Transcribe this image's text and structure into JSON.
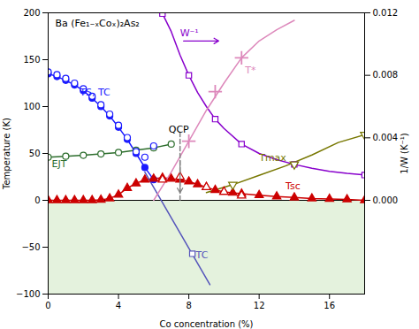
{
  "chart_data": {
    "type": "line",
    "xlabel": "Co concentration (%)",
    "ylabel": "Temperature (K)",
    "y2label": "1/W (K⁻¹)",
    "xlim": [
      0,
      18
    ],
    "xticks": [
      0,
      4,
      8,
      12,
      16
    ],
    "ylim": [
      -100,
      200
    ],
    "yticks": [
      -100,
      -50,
      0,
      50,
      100,
      150,
      200
    ],
    "y2lim": [
      -0.006,
      0.012
    ],
    "y2ticks": [
      {
        "value": 0,
        "label": "0.000"
      },
      0.004,
      0.008,
      0.012
    ],
    "grid": false,
    "series": [
      {
        "type": "area",
        "color": "#d8ecce",
        "x": [
          0,
          18
        ],
        "values": [
          0,
          0
        ]
      },
      {
        "type": "rule",
        "color": "black",
        "values": [
          0
        ]
      },
      {
        "type": "line",
        "color": "#2d6e2d",
        "marker": "circle_open",
        "x": [
          0,
          1,
          2,
          3,
          4,
          5,
          6,
          7
        ],
        "values": [
          46,
          47,
          48,
          49.5,
          51,
          53.5,
          56,
          60
        ]
      },
      {
        "type": "line",
        "color": "#1a1aff",
        "marker": "circle",
        "x": [
          0,
          0.5,
          1,
          1.5,
          2,
          2.5,
          3,
          3.5,
          4,
          4.5,
          5,
          5.5,
          6
        ],
        "values": [
          135,
          132,
          128,
          123,
          117,
          109,
          100,
          90,
          78,
          65,
          50,
          35,
          22
        ]
      },
      {
        "type": "scatter",
        "color": "#1a1aff",
        "marker": "circle_open",
        "x": [
          0,
          0.5,
          1,
          1.5,
          2,
          2.5,
          3,
          3.5,
          4,
          4.5,
          5,
          5.5,
          6
        ],
        "values": [
          137,
          134,
          130,
          125,
          119,
          111,
          102,
          92,
          80,
          67,
          52,
          46,
          58
        ]
      },
      {
        "type": "line",
        "color": "#cc0000",
        "marker": "triangle",
        "x": [
          0,
          0.5,
          1,
          1.5,
          2,
          2.5,
          3,
          3.5,
          4,
          4.5,
          5,
          5.5,
          6,
          6.5,
          7,
          7.5,
          8,
          8.5,
          9,
          9.5,
          10,
          10.5,
          11,
          12,
          13,
          14,
          15,
          16,
          17,
          18
        ],
        "values": [
          0,
          0,
          0,
          0,
          0,
          0,
          0.5,
          2,
          6,
          13,
          18,
          22,
          23,
          24,
          23,
          22,
          20,
          17,
          14,
          11,
          9,
          8,
          7,
          5.5,
          4,
          3,
          2,
          1.5,
          1,
          0
        ]
      },
      {
        "type": "scatter",
        "color": "#cc0000",
        "marker": "triangle_open",
        "x": [
          6.5,
          7.5,
          9,
          10,
          11
        ],
        "values": [
          22,
          25,
          14,
          9,
          5
        ]
      },
      {
        "type": "line",
        "color": "#5555bb",
        "x": [
          5.5,
          9.2
        ],
        "values": [
          30,
          -90
        ]
      },
      {
        "type": "scatter",
        "color": "#5555bb",
        "marker": "square_open",
        "x": [
          8.2
        ],
        "values": [
          -57
        ]
      },
      {
        "type": "line",
        "axis": "y2",
        "color": "#8800cc",
        "x": [
          6.5,
          7.0,
          7.5,
          8.0,
          8.5,
          9.0,
          9.5,
          10,
          11,
          12,
          13,
          14,
          15,
          16,
          17,
          18
        ],
        "values": [
          0.01195,
          0.0108,
          0.0093,
          0.008,
          0.0069,
          0.006,
          0.0052,
          0.0046,
          0.0036,
          0.003,
          0.0026,
          0.0023,
          0.00205,
          0.00185,
          0.00172,
          0.00162
        ]
      },
      {
        "type": "scatter",
        "axis": "y2",
        "color": "#8800cc",
        "marker": "square_open",
        "x": [
          6.5,
          8.0,
          9.5,
          11,
          14,
          18
        ],
        "values": [
          0.01195,
          0.008,
          0.0052,
          0.0036,
          0.0023,
          0.00162
        ]
      },
      {
        "type": "line",
        "color": "#dd88bb",
        "x": [
          6.0,
          7.0,
          8.0,
          9.0,
          10.0,
          11.0,
          12.0,
          13.0,
          14.0
        ],
        "values": [
          0,
          30,
          63,
          96,
          125,
          152,
          170,
          182,
          192
        ]
      },
      {
        "type": "scatter",
        "color": "#dd88bb",
        "marker": "plus",
        "x": [
          8.0,
          9.5,
          11.0
        ],
        "values": [
          63,
          116,
          152
        ]
      },
      {
        "type": "line",
        "axis": "y2",
        "color": "#777700",
        "x": [
          9.0,
          10.5,
          12,
          13.5,
          15,
          16.5,
          18
        ],
        "values": [
          0.0005,
          0.001,
          0.0016,
          0.0022,
          0.0029,
          0.0037,
          0.0042
        ]
      },
      {
        "type": "scatter",
        "axis": "y2",
        "color": "#777700",
        "marker": "triangle_down_open",
        "x": [
          10.5,
          14.0,
          18.0
        ],
        "values": [
          0.001,
          0.0023,
          0.0042
        ]
      },
      {
        "type": "line",
        "color": "gray",
        "line_style": "dashed",
        "x": [
          7.5,
          7.5
        ],
        "values": [
          0,
          75
        ]
      }
    ],
    "arrows": [
      {
        "color": "gray",
        "x": [
          7.5,
          7.5
        ],
        "y": [
          42,
          8
        ]
      },
      {
        "color": "#8800cc",
        "x": [
          7.7,
          9.7
        ],
        "y": [
          170,
          170
        ]
      }
    ],
    "annotations": [
      {
        "text": "QCP",
        "x": 6.85,
        "y": 72,
        "color": "black"
      },
      {
        "text": "W⁻¹",
        "x": 7.5,
        "y": 175,
        "color": "#8800cc"
      },
      {
        "text": "T*",
        "x": 11.2,
        "y": 135,
        "color": "#dd88bb"
      },
      {
        "text": "TS, TC",
        "x": 1.8,
        "y": 112,
        "color": "#1a1aff"
      },
      {
        "text": "EJT",
        "x": 0.2,
        "y": 35,
        "color": "#2d6e2d"
      },
      {
        "text": "Tsc",
        "x": 13.5,
        "y": 12,
        "color": "#cc0000"
      },
      {
        "text": "TC",
        "x": 8.4,
        "y": -62,
        "color": "#5555bb"
      },
      {
        "text": "Tmax",
        "x": 12.0,
        "y": 0.0025,
        "axis": "y2",
        "color": "#777700"
      },
      {
        "text": "Ba (Fe₁₋ₓCoₓ)₂As₂",
        "x": 0.4,
        "y": 185,
        "color": "black"
      }
    ]
  }
}
